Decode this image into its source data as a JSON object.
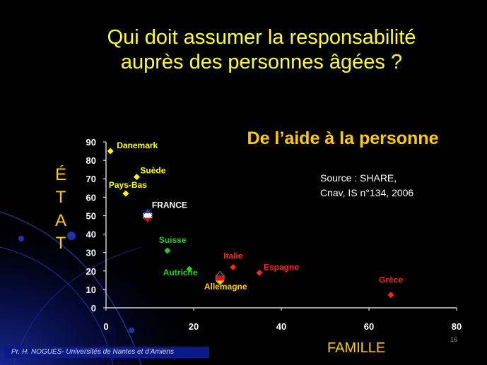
{
  "slide": {
    "title_line1": "Qui doit assumer la responsabilité",
    "title_line2": "auprès des personnes âgées ?",
    "source_line1": "Source : SHARE,",
    "source_line2": "Cnav, IS n°134, 2006",
    "footer": "Pr. H. NOGUES- Universités de Nantes et d'Amiens",
    "page_number": "16"
  },
  "colors": {
    "background": "#000000",
    "title": "#ffff33",
    "accent": "#ffcc00",
    "yellow_group": "#ffff00",
    "green_group": "#22cc22",
    "red_group": "#ff2222"
  },
  "chart_data": {
    "type": "scatter",
    "title": "De l’aide à la personne",
    "xlabel": "FAMILLE",
    "ylabel_letters": [
      "É",
      "T",
      "A",
      "T"
    ],
    "xlim": [
      0,
      80
    ],
    "ylim": [
      0,
      90
    ],
    "xticks": [
      0,
      20,
      40,
      60,
      80
    ],
    "yticks": [
      0,
      10,
      20,
      30,
      40,
      50,
      60,
      70,
      80,
      90
    ],
    "grid": false,
    "legend": "none",
    "points": [
      {
        "label": "Danemark",
        "x": 1,
        "y": 85,
        "color": "#ffff00"
      },
      {
        "label": "Suède",
        "x": 7,
        "y": 71,
        "color": "#ffff00"
      },
      {
        "label": "Pays-Bas",
        "x": 4.5,
        "y": 62,
        "color": "#ffff00"
      },
      {
        "label": "FRANCE",
        "x": 9.5,
        "y": 50,
        "color": "#ffffff",
        "flag": "france"
      },
      {
        "label": "Suisse",
        "x": 14,
        "y": 31,
        "color": "#22cc22"
      },
      {
        "label": "Autriche",
        "x": 19,
        "y": 21,
        "color": "#22cc22"
      },
      {
        "label": "Allemagne",
        "x": 26,
        "y": 16,
        "color": "#ffcc00",
        "flag": "germany"
      },
      {
        "label": "Italie",
        "x": 29,
        "y": 22,
        "color": "#ff2222"
      },
      {
        "label": "Espagne",
        "x": 35,
        "y": 19,
        "color": "#ff2222"
      },
      {
        "label": "Grèce",
        "x": 65,
        "y": 7,
        "color": "#ff2222"
      }
    ]
  }
}
